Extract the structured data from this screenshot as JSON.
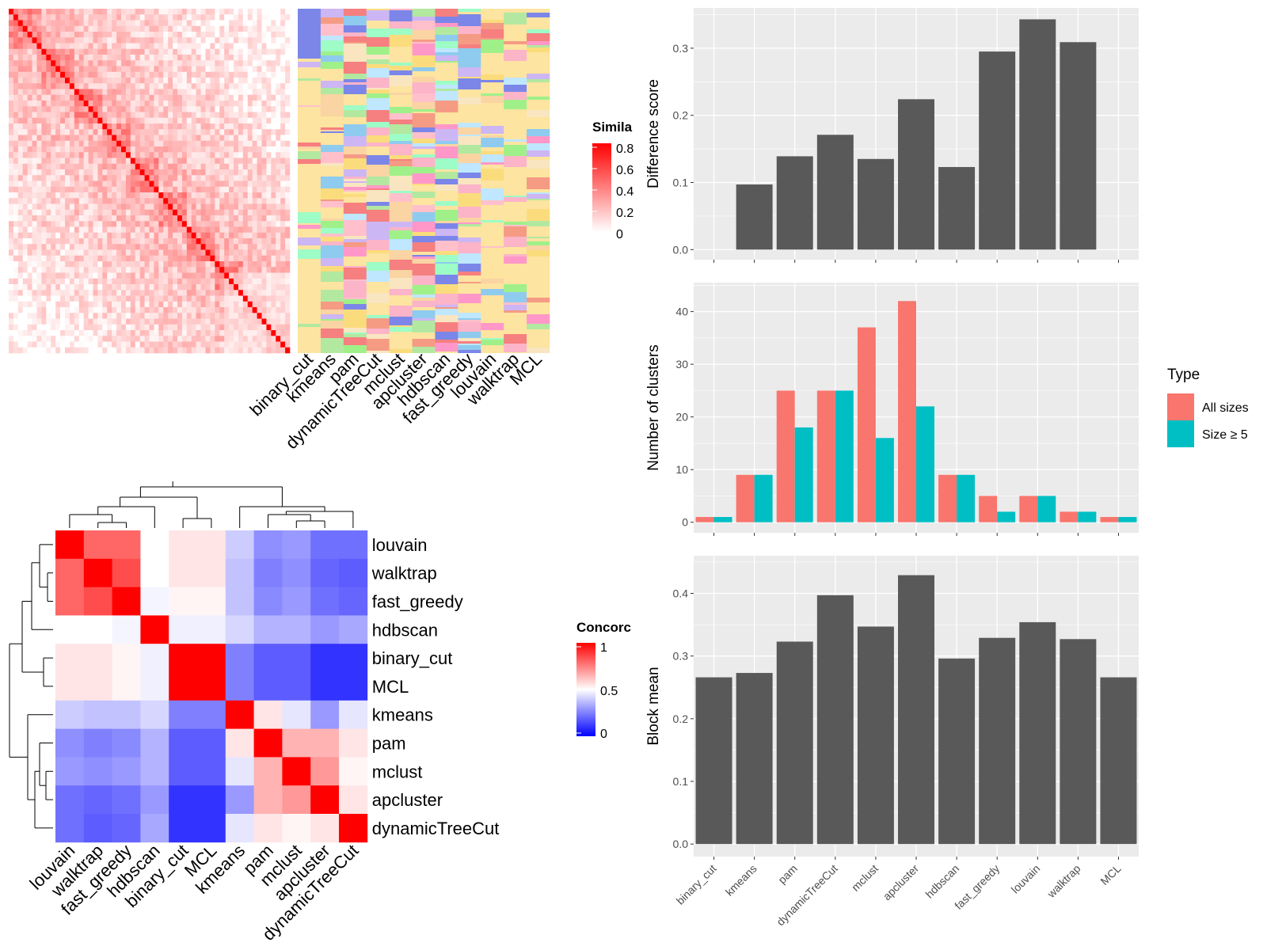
{
  "methods": [
    "binary_cut",
    "kmeans",
    "pam",
    "dynamicTreeCut",
    "mclust",
    "apcluster",
    "hdbscan",
    "fast_greedy",
    "louvain",
    "walktrap",
    "MCL"
  ],
  "colors": {
    "bar": "#595959",
    "panel": "#ebebeb",
    "all_sizes": "#f8766d",
    "size_ge5": "#00bfc4",
    "sim_high": "#ff0000",
    "conc_high": "#ff0000",
    "conc_mid": "#ffffff",
    "conc_low": "#0000ff",
    "cluster_bg": "#fde4a0"
  },
  "similarity_heatmap": {
    "legend_title": "Simila",
    "legend_ticks": [
      "0.8",
      "0.6",
      "0.4",
      "0.2",
      "0"
    ]
  },
  "concordance_heatmap": {
    "legend_title": "Concorc",
    "legend_ticks": [
      "1",
      "0.5",
      "0"
    ],
    "row_labels": [
      "louvain",
      "walktrap",
      "fast_greedy",
      "hdbscan",
      "binary_cut",
      "MCL",
      "kmeans",
      "pam",
      "mclust",
      "apcluster",
      "dynamicTreeCut"
    ],
    "col_labels": [
      "louvain",
      "walktrap",
      "fast_greedy",
      "hdbscan",
      "binary_cut",
      "MCL",
      "kmeans",
      "pam",
      "mclust",
      "apcluster",
      "dynamicTreeCut"
    ],
    "matrix": [
      [
        1.0,
        0.8,
        0.8,
        0.5,
        0.55,
        0.55,
        0.4,
        0.28,
        0.3,
        0.22,
        0.22
      ],
      [
        0.8,
        1.0,
        0.85,
        0.5,
        0.55,
        0.55,
        0.38,
        0.25,
        0.28,
        0.2,
        0.18
      ],
      [
        0.8,
        0.85,
        1.0,
        0.48,
        0.52,
        0.52,
        0.38,
        0.27,
        0.3,
        0.22,
        0.2
      ],
      [
        0.5,
        0.5,
        0.48,
        1.0,
        0.47,
        0.47,
        0.42,
        0.35,
        0.35,
        0.3,
        0.33
      ],
      [
        0.55,
        0.55,
        0.52,
        0.47,
        1.0,
        1.0,
        0.25,
        0.18,
        0.18,
        0.1,
        0.1
      ],
      [
        0.55,
        0.55,
        0.52,
        0.47,
        1.0,
        1.0,
        0.25,
        0.18,
        0.18,
        0.1,
        0.1
      ],
      [
        0.4,
        0.38,
        0.38,
        0.42,
        0.25,
        0.25,
        1.0,
        0.55,
        0.45,
        0.3,
        0.45
      ],
      [
        0.28,
        0.25,
        0.27,
        0.35,
        0.18,
        0.18,
        0.55,
        1.0,
        0.65,
        0.65,
        0.55
      ],
      [
        0.3,
        0.28,
        0.3,
        0.35,
        0.18,
        0.18,
        0.45,
        0.65,
        1.0,
        0.7,
        0.52
      ],
      [
        0.22,
        0.2,
        0.22,
        0.3,
        0.1,
        0.1,
        0.3,
        0.65,
        0.7,
        1.0,
        0.55
      ],
      [
        0.22,
        0.18,
        0.2,
        0.33,
        0.1,
        0.1,
        0.45,
        0.55,
        0.52,
        0.55,
        1.0
      ]
    ]
  },
  "chart_data": [
    {
      "type": "bar",
      "categories": [
        "binary_cut",
        "kmeans",
        "pam",
        "dynamicTreeCut",
        "mclust",
        "apcluster",
        "hdbscan",
        "fast_greedy",
        "louvain",
        "walktrap",
        "MCL"
      ],
      "values": [
        0.0,
        0.097,
        0.139,
        0.171,
        0.135,
        0.224,
        0.123,
        0.295,
        0.343,
        0.309,
        0.0
      ],
      "title": "",
      "xlabel": "",
      "ylabel": "Difference score",
      "ylim": [
        -0.015,
        0.36
      ],
      "yticks": [
        "0.0",
        "0.1",
        "0.2",
        "0.3"
      ],
      "grid": true
    },
    {
      "type": "bar",
      "categories": [
        "binary_cut",
        "kmeans",
        "pam",
        "dynamicTreeCut",
        "mclust",
        "apcluster",
        "hdbscan",
        "fast_greedy",
        "louvain",
        "walktrap",
        "MCL"
      ],
      "series": [
        {
          "name": "All sizes",
          "values": [
            1,
            9,
            25,
            25,
            37,
            42,
            9,
            5,
            5,
            2,
            1
          ]
        },
        {
          "name": "Size ≥ 5",
          "values": [
            1,
            9,
            18,
            25,
            16,
            22,
            9,
            2,
            5,
            2,
            1
          ]
        }
      ],
      "title": "",
      "xlabel": "",
      "ylabel": "Number of clusters",
      "ylim": [
        -2,
        45.5
      ],
      "yticks": [
        "0",
        "10",
        "20",
        "30",
        "40"
      ],
      "legend": {
        "title": "Type",
        "position": "right"
      },
      "grid": true
    },
    {
      "type": "bar",
      "categories": [
        "binary_cut",
        "kmeans",
        "pam",
        "dynamicTreeCut",
        "mclust",
        "apcluster",
        "hdbscan",
        "fast_greedy",
        "louvain",
        "walktrap",
        "MCL"
      ],
      "values": [
        0.266,
        0.273,
        0.323,
        0.397,
        0.347,
        0.429,
        0.296,
        0.329,
        0.354,
        0.327,
        0.266
      ],
      "title": "",
      "xlabel": "",
      "ylabel": "Block mean",
      "ylim": [
        -0.02,
        0.46
      ],
      "yticks": [
        "0.0",
        "0.1",
        "0.2",
        "0.3",
        "0.4"
      ],
      "grid": true
    }
  ]
}
